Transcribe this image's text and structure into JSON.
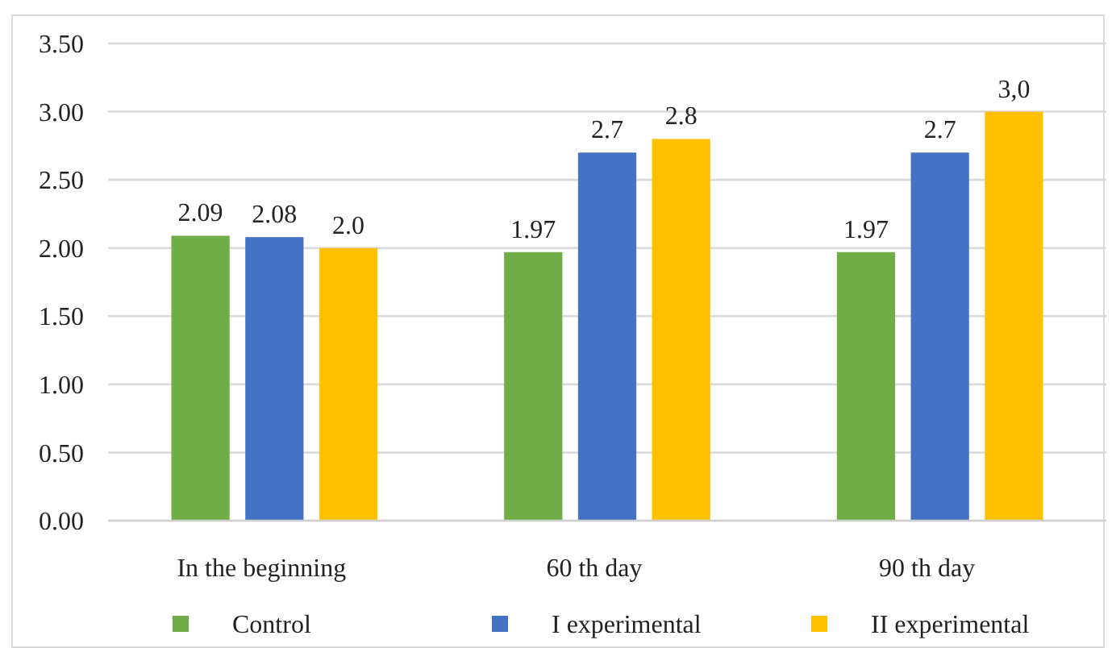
{
  "chart_data": {
    "type": "bar",
    "categories": [
      "In the beginning",
      "60 th day",
      "90 th day"
    ],
    "series": [
      {
        "name": "Control",
        "color": "#70ad47",
        "values": [
          2.09,
          1.97,
          1.97
        ],
        "value_labels": [
          "2.09",
          "1.97",
          "1.97"
        ]
      },
      {
        "name": "I experimental",
        "color": "#4472c4",
        "values": [
          2.08,
          2.7,
          2.7
        ],
        "value_labels": [
          "2.08",
          "2.7",
          "2.7"
        ]
      },
      {
        "name": "II experimental",
        "color": "#ffc000",
        "values": [
          2.0,
          2.8,
          3.0
        ],
        "value_labels": [
          "2.0",
          "2.8",
          "3,0"
        ]
      }
    ],
    "ylim": [
      0,
      3.5
    ],
    "yticks": [
      {
        "value": 0,
        "label": "0.00"
      },
      {
        "value": 0.5,
        "label": "0.50"
      },
      {
        "value": 1,
        "label": "1.00"
      },
      {
        "value": 1.5,
        "label": "1.50"
      },
      {
        "value": 2,
        "label": "2.00"
      },
      {
        "value": 2.5,
        "label": "2.50"
      },
      {
        "value": 3,
        "label": "3.00"
      },
      {
        "value": 3.5,
        "label": "3.50"
      }
    ],
    "grid": "y",
    "legend": "bottom"
  }
}
